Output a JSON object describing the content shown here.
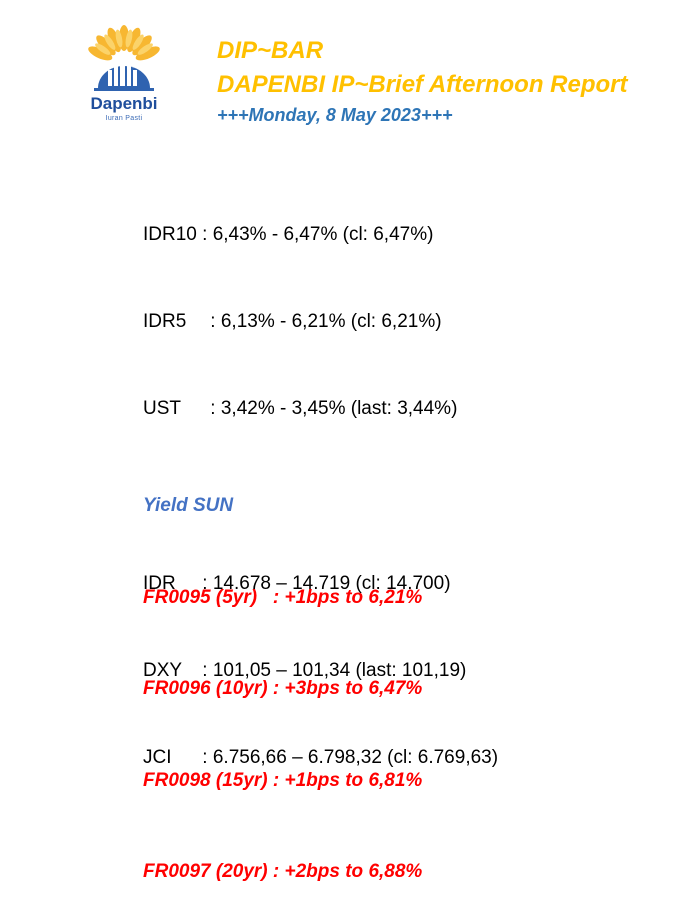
{
  "header": {
    "line1": "DIP~BAR",
    "line2": "DAPENBI IP~Brief Afternoon Report",
    "line3": "+++Monday, 8 May 2023+++"
  },
  "logo": {
    "name": "Dapenbi",
    "tagline": "Iuran Pasti",
    "icon": "sunburst-building-logo"
  },
  "bonds": [
    {
      "label": "IDR10",
      "sep": " : ",
      "value": "6,43% - 6,47% (cl: 6,47%)"
    },
    {
      "label": "IDR5",
      "sep": " : ",
      "value": "6,13% - 6,21% (cl: 6,21%)"
    },
    {
      "label": "UST",
      "sep": " : ",
      "value": "3,42% - 3,45% (last: 3,44%)"
    }
  ],
  "markets": [
    {
      "label": "IDR",
      "sep": " : ",
      "value": "14.678 – 14.719 (cl: 14.700)"
    },
    {
      "label": "DXY",
      "sep": " : ",
      "value": "101,05 – 101,34 (last: 101,19)"
    },
    {
      "label": "JCI",
      "sep": " : ",
      "value": "6.756,66 – 6.798,32 (cl: 6.769,63)"
    }
  ],
  "yield": {
    "title": "Yield SUN",
    "rows": [
      "FR0095 (5yr)   : +1bps to 6,21%",
      "FR0096 (10yr) : +3bps to 6,47%",
      "FR0098 (15yr) : +1bps to 6,81%",
      "FR0097 (20yr) : +2bps to 6,88%"
    ]
  },
  "colors": {
    "title": "#ffc000",
    "date": "#2e75b6",
    "yield_title": "#4472c4",
    "yield_rows": "#ff0000",
    "logo_blue": "#1f4e9c"
  }
}
